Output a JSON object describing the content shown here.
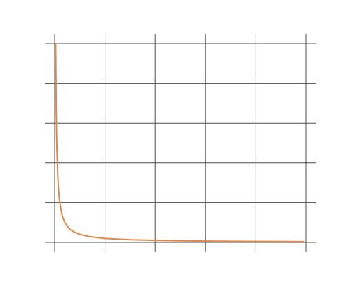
{
  "chart_data": {
    "type": "line",
    "title": "",
    "xlabel": "",
    "ylabel": "",
    "grid": true,
    "xlim": [
      0,
      5
    ],
    "ylim": [
      0,
      5
    ],
    "x_ticks": [
      0,
      1,
      2,
      3,
      4,
      5
    ],
    "y_ticks": [
      0,
      1,
      2,
      3,
      4,
      5
    ],
    "series": [
      {
        "color": "#e0864a",
        "x": [
          0.02,
          0.03,
          0.04,
          0.06,
          0.08,
          0.1,
          0.15,
          0.2,
          0.3,
          0.4,
          0.5,
          0.7,
          1.0,
          1.5,
          2.0,
          2.5,
          3.0,
          3.5,
          4.0,
          4.5,
          4.95
        ],
        "y": [
          5.0,
          3.33,
          2.5,
          1.67,
          1.25,
          1.0,
          0.67,
          0.5,
          0.33,
          0.25,
          0.2,
          0.143,
          0.1,
          0.067,
          0.05,
          0.04,
          0.033,
          0.029,
          0.025,
          0.022,
          0.02
        ]
      }
    ]
  },
  "colors": {
    "grid": "#4d4d4d",
    "line": "#e0864a",
    "background": "#ffffff"
  }
}
